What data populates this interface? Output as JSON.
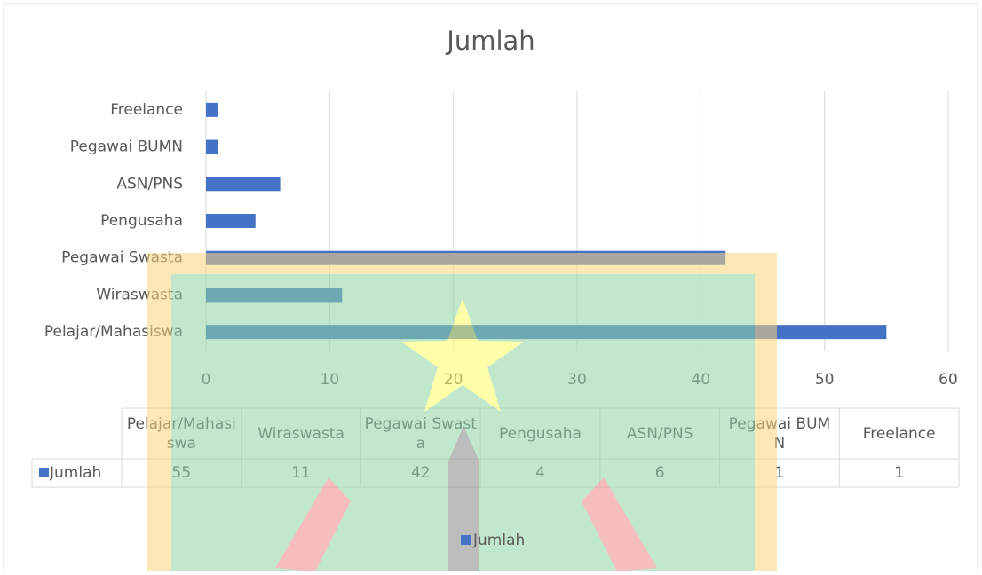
{
  "chart_data": {
    "type": "bar",
    "orientation": "horizontal",
    "title": "Jumlah",
    "categories": [
      "Pelajar/Mahasiswa",
      "Wiraswasta",
      "Pegawai Swasta",
      "Pengusaha",
      "ASN/PNS",
      "Pegawai BUMN",
      "Freelance"
    ],
    "series": [
      {
        "name": "Jumlah",
        "color": "#4472c4",
        "values": [
          55,
          11,
          42,
          4,
          6,
          1,
          1
        ]
      }
    ],
    "xlim": [
      0,
      60
    ],
    "xticks": [
      0,
      10,
      20,
      30,
      40,
      50,
      60
    ],
    "grid": true,
    "data_table": true,
    "legend": "bottom"
  }
}
